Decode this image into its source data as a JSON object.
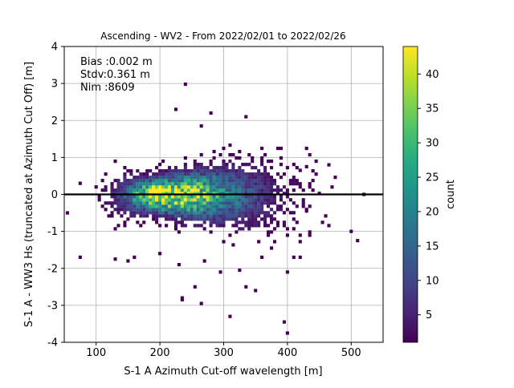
{
  "chart_data": {
    "type": "heatmap",
    "title": "Ascending - WV2 - From 2022/02/01 to 2022/02/26",
    "xlabel": "S-1 A Azimuth Cut-off wavelength [m]",
    "ylabel": "S-1 A - WW3 Hs (truncated at Azimuth Cut Off) [m]",
    "xlim": [
      50,
      550
    ],
    "ylim": [
      -4,
      4
    ],
    "xticks": [
      100,
      200,
      300,
      400,
      500
    ],
    "yticks": [
      -4,
      -3,
      -2,
      -1,
      0,
      1,
      2,
      3,
      4
    ],
    "grid": true,
    "zero_line": 0,
    "annotations": {
      "bias": "Bias :0.002 m",
      "stdv": "Stdv:0.361 m",
      "nim": "Nim :8609"
    },
    "colorbar": {
      "label": "count",
      "colormap": "viridis",
      "min": 1,
      "max": 44,
      "ticks": [
        5,
        10,
        15,
        20,
        25,
        30,
        35,
        40
      ]
    },
    "density_core": {
      "center_x": 200,
      "center_y": -0.02,
      "peak_count": 44,
      "x_range": [
        95,
        475
      ],
      "y_range": [
        -1.8,
        1.5
      ]
    },
    "outliers": [
      [
        240,
        2.98
      ],
      [
        280,
        2.2
      ],
      [
        335,
        2.1
      ],
      [
        225,
        2.3
      ],
      [
        265,
        1.85
      ],
      [
        395,
        -3.45
      ],
      [
        400,
        -3.75
      ],
      [
        265,
        -2.95
      ],
      [
        310,
        -3.3
      ],
      [
        235,
        -2.8
      ],
      [
        235,
        -2.85
      ],
      [
        255,
        -2.5
      ],
      [
        350,
        -2.6
      ],
      [
        335,
        -2.5
      ],
      [
        295,
        -2.1
      ],
      [
        325,
        -2.05
      ],
      [
        400,
        -2.1
      ],
      [
        75,
        -1.7
      ],
      [
        130,
        -1.75
      ],
      [
        410,
        -1.7
      ],
      [
        420,
        -1.7
      ],
      [
        510,
        -1.25
      ],
      [
        500,
        -1.0
      ],
      [
        55,
        -0.5
      ],
      [
        75,
        0.3
      ],
      [
        420,
        0.65
      ],
      [
        430,
        0.75
      ],
      [
        465,
        0.8
      ],
      [
        520,
        0.0
      ],
      [
        470,
        0.2
      ],
      [
        430,
        -0.45
      ],
      [
        200,
        -1.6
      ],
      [
        160,
        -1.7
      ],
      [
        150,
        -1.8
      ],
      [
        270,
        -1.8
      ],
      [
        360,
        -1.7
      ],
      [
        230,
        -1.9
      ]
    ]
  },
  "colors": {
    "zero_line": "#000000",
    "grid": "#b0b0b0"
  }
}
